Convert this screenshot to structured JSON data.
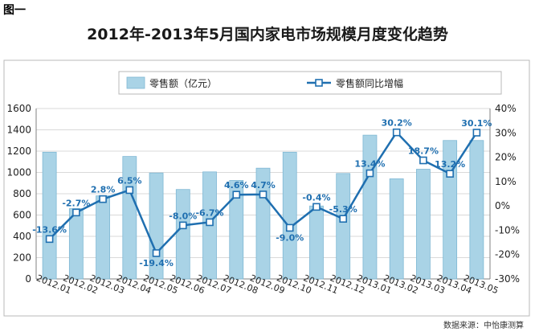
{
  "figure_label": "图一",
  "source_note": "数据来源：中怡康测算",
  "chart_data": {
    "type": "bar+line",
    "title": "2012年-2013年5月国内家电市场规模月度变化趋势",
    "categories": [
      "2012.01",
      "2012.02",
      "2012.03",
      "2012.04",
      "2012.05",
      "2012.06",
      "2012.07",
      "2012.08",
      "2012.09",
      "2012.10",
      "2012.11",
      "2012.12",
      "2013.01",
      "2013.02",
      "2013.03",
      "2013.04",
      "2013.05"
    ],
    "series": [
      {
        "name": "零售额（亿元）",
        "type": "bar",
        "axis": "left",
        "color": "#a9d3e6",
        "values": [
          1190,
          660,
          780,
          1150,
          995,
          840,
          1005,
          925,
          1040,
          1190,
          685,
          990,
          1350,
          940,
          1030,
          1300,
          1300
        ]
      },
      {
        "name": "零售额同比增幅",
        "type": "line",
        "axis": "right",
        "color": "#1f6fb0",
        "values": [
          -13.6,
          -2.7,
          2.8,
          6.5,
          -19.4,
          -8.0,
          -6.7,
          4.6,
          4.7,
          -9.0,
          -0.4,
          -5.3,
          13.4,
          30.2,
          18.7,
          13.2,
          30.1
        ],
        "labels": [
          "-13.6%",
          "-2.7%",
          "2.8%",
          "6.5%",
          "-19.4%",
          "-8.0%",
          "-6.7%",
          "4.6%",
          "4.7%",
          "-9.0%",
          "-0.4%",
          "-5.3%",
          "13.4%",
          "30.2%",
          "18.7%",
          "13.2%",
          "30.1%"
        ]
      }
    ],
    "left_axis": {
      "min": 0,
      "max": 1600,
      "ticks": [
        "0",
        "200",
        "400",
        "600",
        "800",
        "1000",
        "1200",
        "1400",
        "1600"
      ]
    },
    "right_axis": {
      "min": -30,
      "max": 40,
      "ticks": [
        "-30%",
        "-20%",
        "-10%",
        "0%",
        "10%",
        "20%",
        "30%",
        "40%"
      ]
    },
    "grid": true,
    "legend_position": "top"
  }
}
